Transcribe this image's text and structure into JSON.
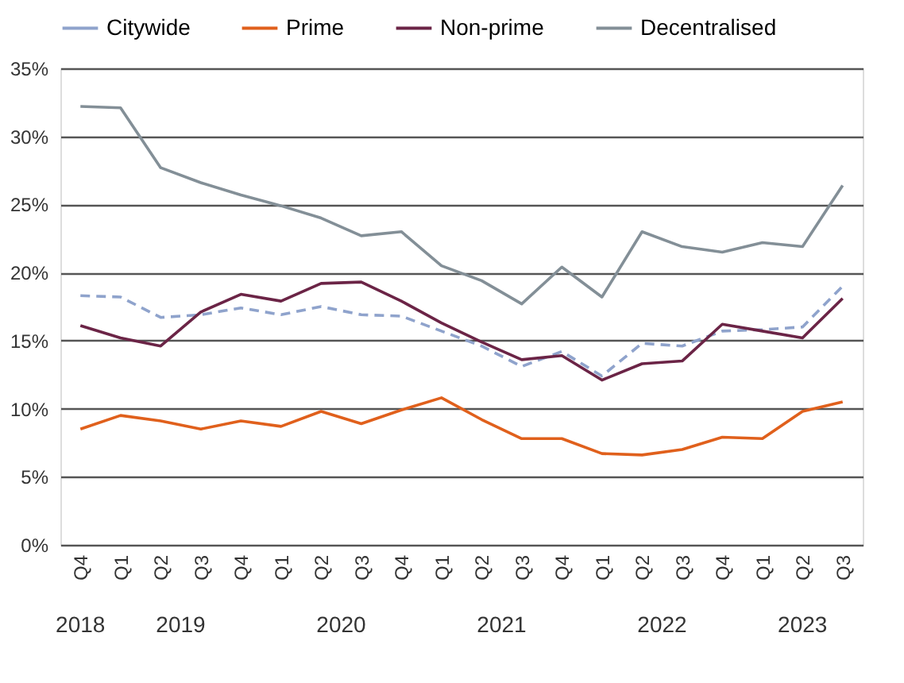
{
  "chart_data": {
    "type": "line",
    "categories": [
      "Q4",
      "Q1",
      "Q2",
      "Q3",
      "Q4",
      "Q1",
      "Q2",
      "Q3",
      "Q4",
      "Q1",
      "Q2",
      "Q3",
      "Q4",
      "Q1",
      "Q2",
      "Q3",
      "Q4",
      "Q1",
      "Q2",
      "Q3"
    ],
    "series": [
      {
        "name": "Citywide",
        "color": "#8fa3cc",
        "line_style": "dashed",
        "values": [
          18.3,
          18.2,
          16.7,
          16.9,
          17.4,
          16.9,
          17.5,
          16.9,
          16.8,
          15.7,
          14.6,
          13.1,
          14.2,
          12.4,
          14.8,
          14.6,
          15.7,
          15.8,
          16.0,
          19.0
        ]
      },
      {
        "name": "Prime",
        "color": "#e0601c",
        "line_style": "solid",
        "values": [
          8.5,
          9.5,
          9.1,
          8.5,
          9.1,
          8.7,
          9.8,
          8.9,
          9.9,
          10.8,
          9.2,
          7.8,
          7.8,
          6.7,
          6.6,
          7.0,
          7.9,
          7.8,
          9.8,
          10.5
        ]
      },
      {
        "name": "Non-prime",
        "color": "#6b2446",
        "line_style": "solid",
        "values": [
          16.1,
          15.2,
          14.6,
          17.1,
          18.4,
          17.9,
          19.2,
          19.3,
          17.9,
          16.3,
          14.9,
          13.6,
          13.9,
          12.1,
          13.3,
          13.5,
          16.2,
          15.7,
          15.2,
          18.1
        ]
      },
      {
        "name": "Decentralised",
        "color": "#838f97",
        "line_style": "solid",
        "values": [
          32.2,
          32.1,
          27.7,
          26.6,
          25.7,
          24.9,
          24.0,
          22.7,
          23.0,
          20.5,
          19.4,
          17.7,
          20.4,
          18.2,
          23.0,
          21.9,
          21.5,
          22.2,
          21.9,
          26.4
        ]
      }
    ],
    "annotations": [
      "2018",
      "2019",
      "2020",
      "2021",
      "2022",
      "2023"
    ],
    "ylim": [
      0,
      35
    ],
    "yticks": [
      {
        "value": 0,
        "label": "0%"
      },
      {
        "value": 5,
        "label": "5%"
      },
      {
        "value": 10,
        "label": "10%"
      },
      {
        "value": 15,
        "label": "15%"
      },
      {
        "value": 20,
        "label": "20%"
      },
      {
        "value": 25,
        "label": "25%"
      },
      {
        "value": 30,
        "label": "30%"
      },
      {
        "value": 35,
        "label": "35%"
      }
    ],
    "grid": "y",
    "legend": "top",
    "marker": "none"
  }
}
